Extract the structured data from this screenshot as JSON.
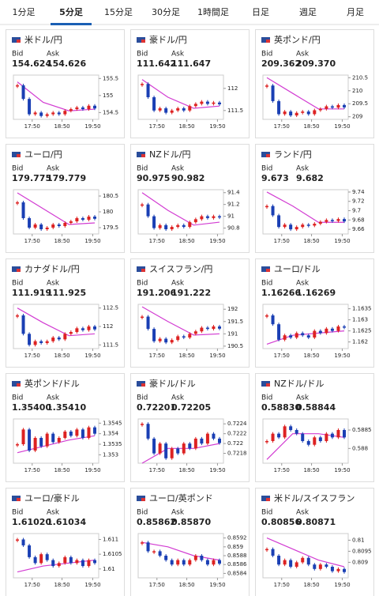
{
  "tabs": [
    "1分足",
    "5分足",
    "15分足",
    "30分足",
    "1時間足",
    "日足",
    "週足",
    "月足"
  ],
  "active_tab": 1,
  "bid_label": "Bid",
  "ask_label": "Ask",
  "time_labels": [
    "17:50",
    "18:50",
    "19:50"
  ],
  "cards": [
    {
      "name": "米ドル/円",
      "bid": "154.624",
      "ask": "154.626",
      "chart": {
        "ylim": [
          154.3,
          155.6
        ],
        "yticks": [
          154.5,
          155,
          155.5
        ],
        "close": [
          155.3,
          154.9,
          154.45,
          154.5,
          154.4,
          154.45,
          154.5,
          154.45,
          154.55,
          154.6,
          154.65,
          154.6,
          154.7,
          154.62
        ],
        "ma": [
          155.4,
          154.8,
          154.55,
          154.6
        ]
      }
    },
    {
      "name": "豪ドル/円",
      "bid": "111.642",
      "ask": "111.647",
      "chart": {
        "ylim": [
          111.3,
          112.3
        ],
        "yticks": [
          111.5,
          112
        ],
        "close": [
          112.1,
          111.8,
          111.5,
          111.55,
          111.45,
          111.5,
          111.55,
          111.5,
          111.6,
          111.65,
          111.7,
          111.65,
          111.68,
          111.64
        ],
        "ma": [
          112.2,
          111.8,
          111.55,
          111.6
        ]
      }
    },
    {
      "name": "英ポンド/円",
      "bid": "209.362",
      "ask": "209.370",
      "chart": {
        "ylim": [
          208.9,
          210.6
        ],
        "yticks": [
          209,
          209.5,
          210,
          210.5
        ],
        "close": [
          210.2,
          209.6,
          209.1,
          209.2,
          209.05,
          209.15,
          209.2,
          209.1,
          209.25,
          209.3,
          209.4,
          209.35,
          209.45,
          209.36
        ],
        "ma": [
          210.5,
          209.9,
          209.3,
          209.3
        ]
      }
    },
    {
      "name": "ユーロ/円",
      "bid": "179.775",
      "ask": "179.779",
      "chart": {
        "ylim": [
          179.3,
          180.7
        ],
        "yticks": [
          179.5,
          180,
          180.5
        ],
        "close": [
          180.3,
          179.8,
          179.5,
          179.6,
          179.45,
          179.5,
          179.6,
          179.55,
          179.65,
          179.7,
          179.8,
          179.75,
          179.85,
          179.78
        ],
        "ma": [
          180.6,
          180.1,
          179.6,
          179.65
        ]
      }
    },
    {
      "name": "NZドル/円",
      "bid": "90.975",
      "ask": "90.982",
      "chart": {
        "ylim": [
          90.7,
          91.45
        ],
        "yticks": [
          90.8,
          91,
          91.2,
          91.4
        ],
        "close": [
          91.2,
          91.0,
          90.8,
          90.85,
          90.78,
          90.82,
          90.85,
          90.82,
          90.9,
          90.95,
          91.0,
          90.97,
          91.0,
          90.98
        ],
        "ma": [
          91.4,
          91.1,
          90.85,
          90.9
        ]
      }
    },
    {
      "name": "ランド/円",
      "bid": "9.673",
      "ask": "9.682",
      "chart": {
        "ylim": [
          9.65,
          9.745
        ],
        "yticks": [
          9.66,
          9.68,
          9.7,
          9.72,
          9.74
        ],
        "close": [
          9.71,
          9.69,
          9.665,
          9.67,
          9.66,
          9.665,
          9.67,
          9.668,
          9.672,
          9.676,
          9.68,
          9.678,
          9.682,
          9.677
        ],
        "ma": [
          9.74,
          9.71,
          9.675,
          9.675
        ]
      }
    },
    {
      "name": "カナダドル/円",
      "bid": "111.919",
      "ask": "111.925",
      "chart": {
        "ylim": [
          111.4,
          112.6
        ],
        "yticks": [
          111.5,
          112,
          112.5
        ],
        "close": [
          112.3,
          111.8,
          111.5,
          111.6,
          111.55,
          111.6,
          111.7,
          111.65,
          111.8,
          111.85,
          111.95,
          111.9,
          112.0,
          111.92
        ],
        "ma": [
          112.5,
          112.1,
          111.75,
          111.8
        ]
      }
    },
    {
      "name": "スイスフラン/円",
      "bid": "191.206",
      "ask": "191.222",
      "chart": {
        "ylim": [
          190.4,
          192.2
        ],
        "yticks": [
          190.5,
          191,
          191.5,
          192
        ],
        "close": [
          191.7,
          191.2,
          190.7,
          190.8,
          190.65,
          190.75,
          190.9,
          190.85,
          191.0,
          191.1,
          191.25,
          191.2,
          191.3,
          191.21
        ],
        "ma": [
          192.1,
          191.5,
          190.95,
          191.0
        ]
      }
    },
    {
      "name": "ユーロ/ドル",
      "bid": "1.16266",
      "ask": "1.16269",
      "chart": {
        "ylim": [
          1.1617,
          1.1637
        ],
        "yticks": [
          1.162,
          1.1625,
          1.163,
          1.1635
        ],
        "close": [
          1.1632,
          1.1628,
          1.1621,
          1.1623,
          1.1622,
          1.1624,
          1.1623,
          1.1622,
          1.1625,
          1.1624,
          1.1626,
          1.1625,
          1.1627,
          1.16266
        ],
        "ma": [
          1.1619,
          1.1623,
          1.1624,
          1.1625
        ]
      }
    },
    {
      "name": "英ポンド/ドル",
      "bid": "1.35400",
      "ask": "1.35410",
      "chart": {
        "ylim": [
          1.3526,
          1.3547
        ],
        "yticks": [
          1.353,
          1.3535,
          1.354,
          1.3545
        ],
        "close": [
          1.3535,
          1.3542,
          1.3532,
          1.3538,
          1.3534,
          1.354,
          1.3536,
          1.3538,
          1.3541,
          1.3539,
          1.3542,
          1.3538,
          1.3543,
          1.354
        ],
        "ma": [
          1.3531,
          1.3534,
          1.3537,
          1.3539
        ]
      }
    },
    {
      "name": "豪ドル/ドル",
      "bid": "0.72201",
      "ask": "0.72205",
      "chart": {
        "ylim": [
          0.7216,
          0.7225
        ],
        "yticks": [
          0.7218,
          0.722,
          0.7222,
          0.7224
        ],
        "close": [
          0.7224,
          0.7221,
          0.7218,
          0.722,
          0.7217,
          0.7219,
          0.7218,
          0.722,
          0.7219,
          0.7221,
          0.722,
          0.7222,
          0.7221,
          0.72201
        ],
        "ma": [
          0.7216,
          0.7219,
          0.7219,
          0.722
        ]
      }
    },
    {
      "name": "NZドル/ドル",
      "bid": "0.58830",
      "ask": "0.58844",
      "chart": {
        "ylim": [
          0.5876,
          0.5888
        ],
        "yticks": [
          0.588,
          0.5885
        ],
        "close": [
          0.5882,
          0.5884,
          0.5883,
          0.5886,
          0.5885,
          0.5884,
          0.5882,
          0.5881,
          0.5883,
          0.5882,
          0.5884,
          0.5883,
          0.5885,
          0.5883
        ],
        "ma": [
          0.5877,
          0.5884,
          0.5884,
          0.5883
        ]
      }
    },
    {
      "name": "ユーロ/豪ドル",
      "bid": "1.61020",
      "ask": "1.61034",
      "chart": {
        "ylim": [
          1.6097,
          1.6112
        ],
        "yticks": [
          1.61,
          1.6105,
          1.611
        ],
        "close": [
          1.611,
          1.6108,
          1.6104,
          1.6102,
          1.6105,
          1.6103,
          1.6101,
          1.6102,
          1.6104,
          1.6102,
          1.6103,
          1.6101,
          1.6103,
          1.6102
        ],
        "ma": [
          1.6099,
          1.6101,
          1.6102,
          1.6103
        ]
      }
    },
    {
      "name": "ユーロ/英ポンド",
      "bid": "0.85862",
      "ask": "0.85870",
      "chart": {
        "ylim": [
          0.8583,
          0.8593
        ],
        "yticks": [
          0.8584,
          0.8586,
          0.8588,
          0.859,
          0.8592
        ],
        "close": [
          0.8591,
          0.8589,
          0.8589,
          0.8588,
          0.8587,
          0.8586,
          0.8587,
          0.8586,
          0.8587,
          0.8588,
          0.8587,
          0.8586,
          0.8587,
          0.85862
        ],
        "ma": [
          0.8591,
          0.859,
          0.8588,
          0.8587
        ]
      }
    },
    {
      "name": "米ドル/スイスフラン",
      "bid": "0.80856",
      "ask": "0.80871",
      "chart": {
        "ylim": [
          0.8083,
          0.8103
        ],
        "yticks": [
          0.809,
          0.8095,
          0.81
        ],
        "close": [
          0.8096,
          0.8093,
          0.8089,
          0.8091,
          0.8088,
          0.809,
          0.8092,
          0.8089,
          0.8087,
          0.8089,
          0.8088,
          0.8086,
          0.8087,
          0.80856
        ],
        "ma": [
          0.8101,
          0.8096,
          0.8091,
          0.8088
        ]
      }
    }
  ]
}
